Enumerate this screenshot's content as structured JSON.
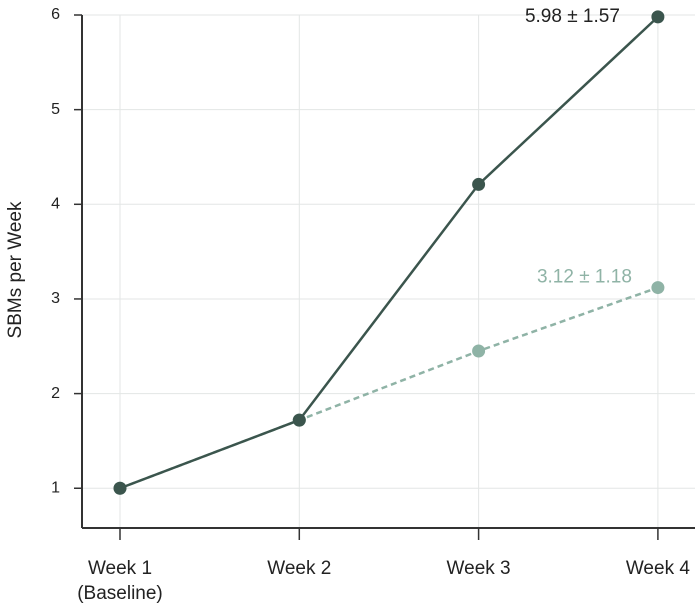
{
  "chart_data": {
    "type": "line",
    "y_label": "SBMs per Week",
    "categories": [
      "Week 1\n(Baseline)",
      "Week 2",
      "Week 3",
      "Week 4"
    ],
    "series": [
      {
        "color": "#8fb3a6",
        "line_style": "dashed",
        "values": [
          1,
          1.72,
          2.45,
          3.12
        ],
        "value_labels": [
          null,
          null,
          null,
          "3.12 ± 1.18"
        ],
        "label_color": "#8fb3a6"
      },
      {
        "color": "#3b554d",
        "line_style": "solid",
        "values": [
          1,
          1.72,
          4.21,
          5.98
        ],
        "value_labels": [
          null,
          null,
          null,
          "5.98 ± 1.57"
        ],
        "label_color": "#222222"
      }
    ],
    "ylim": [
      0.58,
      6.0
    ],
    "yticks": [
      1,
      2,
      3,
      4,
      5,
      6
    ],
    "grid": true
  }
}
